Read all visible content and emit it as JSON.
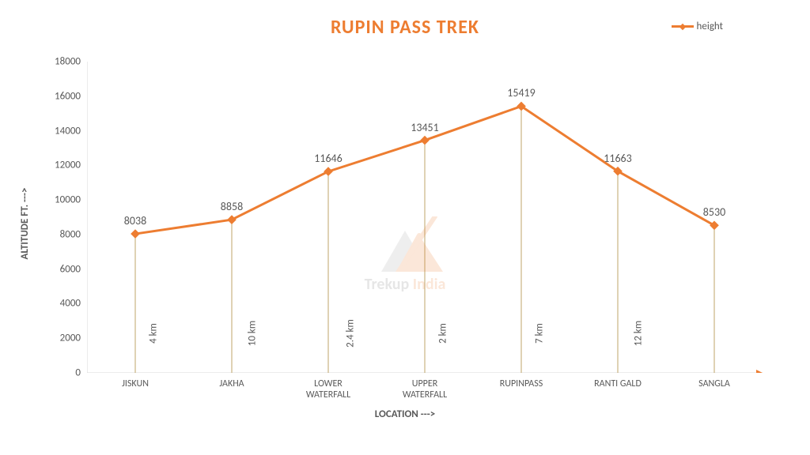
{
  "chart": {
    "type": "line",
    "title": "RUPIN PASS TREK",
    "title_fontsize": 24,
    "title_color": "#ed7d31",
    "legend": {
      "label": "height",
      "position": "top-right",
      "color": "#595959",
      "fontsize": 13
    },
    "y_axis": {
      "title": "ALTITUDE FT. --->",
      "title_fontsize": 13,
      "ylim": [
        0,
        18000
      ],
      "ytick_step": 2000,
      "tick_label_fontsize": 13,
      "tick_color": "#595959"
    },
    "x_axis": {
      "title": "LOCATION --->",
      "title_fontsize": 13,
      "tick_label_fontsize": 12,
      "tick_color": "#595959"
    },
    "categories": [
      "JISKUN",
      "JAKHA",
      "LOWER\nWATERFALL",
      "UPPER\nWATERFALL",
      "RUPINPASS",
      "RANTI GALD",
      "SANGLA"
    ],
    "values": [
      8038,
      8858,
      11646,
      13451,
      15419,
      11663,
      8530
    ],
    "data_label_fontsize": 14,
    "data_label_color": "#595959",
    "distances": [
      "4 km",
      "10 km",
      "2.4 km",
      "2 km",
      "7 km",
      "12 km"
    ],
    "distance_label_fontsize": 13,
    "line_color": "#ed7d31",
    "line_width": 3,
    "marker_style": "diamond",
    "marker_size": 7,
    "marker_color": "#ed7d31",
    "drop_line_color": "#bfa46a",
    "drop_line_width": 1,
    "axis_line_color": "#d9d9d9",
    "background_color": "#ffffff",
    "grid": false
  },
  "watermark": {
    "text_left": "Trekup ",
    "text_right": "India",
    "accent_color": "#ed7d31",
    "shape_color_accent": "#ed7d31",
    "shape_color_grey": "#a6a6a6"
  }
}
